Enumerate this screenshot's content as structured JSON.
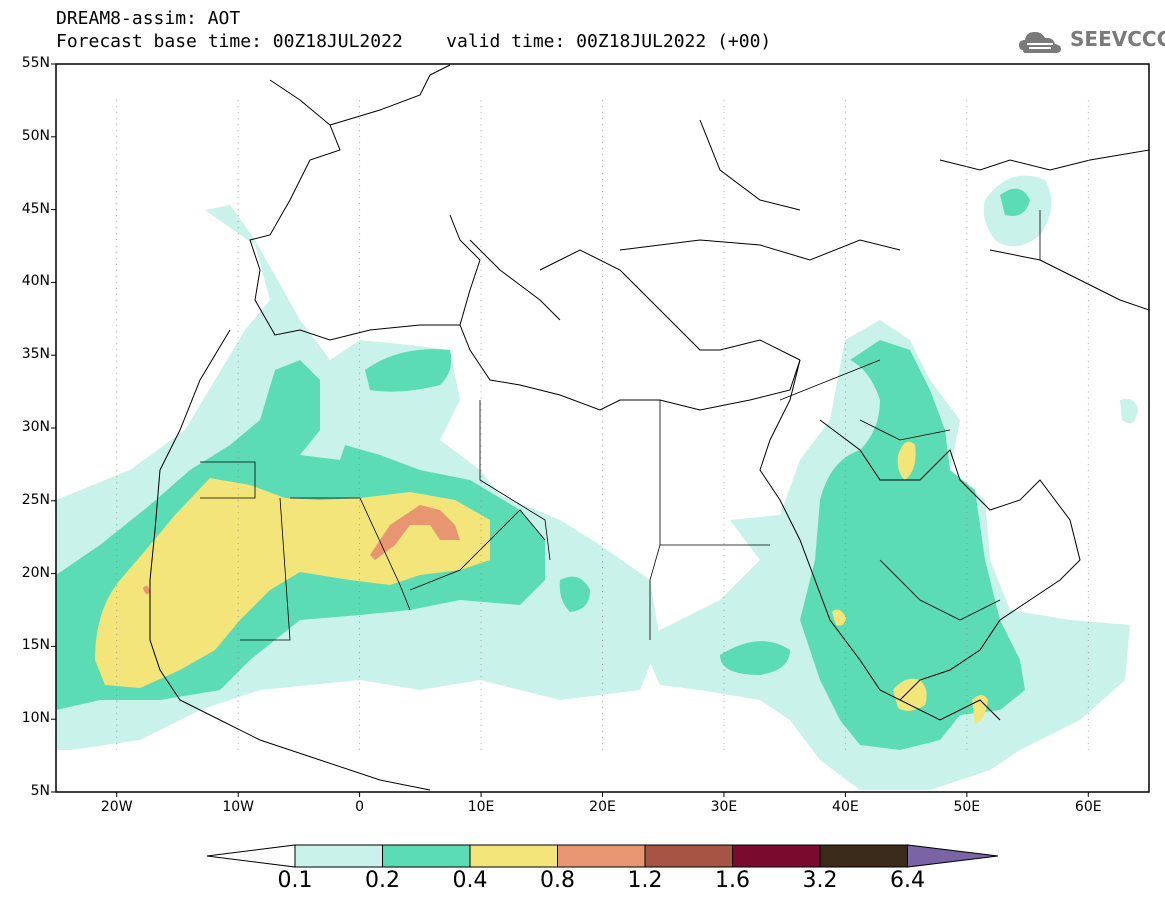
{
  "header": {
    "title": "DREAM8-assim: AOT",
    "base_time_label": "Forecast base time: 00Z18JUL2022",
    "valid_time_label": "valid time: 00Z18JUL2022 (+00)"
  },
  "logo": {
    "text": "SEEVCCC",
    "icon": "cloud-icon"
  },
  "map": {
    "lat_labels": [
      "55N",
      "50N",
      "45N",
      "40N",
      "35N",
      "30N",
      "25N",
      "20N",
      "15N",
      "10N",
      "5N"
    ],
    "lon_labels": [
      "20W",
      "10W",
      "0",
      "10E",
      "20E",
      "30E",
      "40E",
      "50E",
      "60E"
    ],
    "lon_range": [
      -25,
      65
    ],
    "lat_range": [
      5,
      55
    ]
  },
  "colorbar": {
    "labels": [
      "0.1",
      "0.2",
      "0.4",
      "0.8",
      "1.2",
      "1.6",
      "3.2",
      "6.4"
    ],
    "colors": [
      "#ffffff",
      "#c8f2ea",
      "#5cdcb4",
      "#f3e57a",
      "#e89672",
      "#a65444",
      "#7a0a2e",
      "#3a2a1a",
      "#7a64a6"
    ]
  }
}
